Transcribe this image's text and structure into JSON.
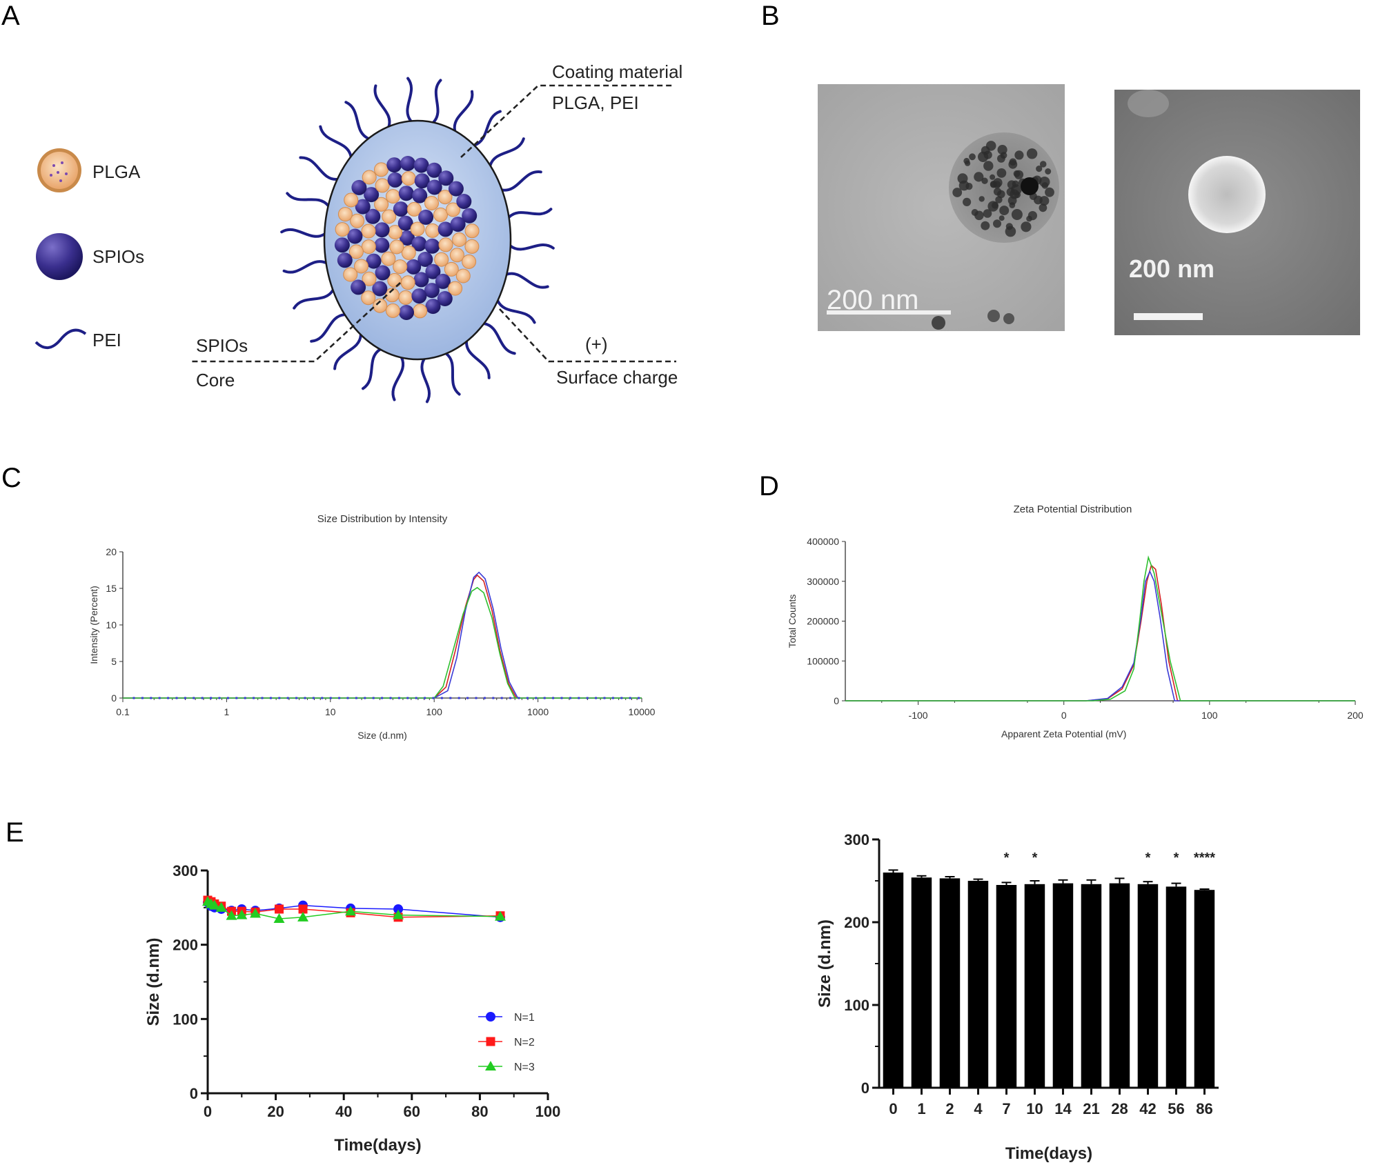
{
  "panels": {
    "a": "A",
    "b": "B",
    "c": "C",
    "d": "D",
    "e": "E"
  },
  "schematic": {
    "legend": [
      "PLGA",
      "SPIOs",
      "PEI"
    ],
    "coating_label_1": "Coating material",
    "coating_label_2": "PLGA, PEI",
    "core_label_1": "SPIOs",
    "core_label_2": "Core",
    "charge_label_1": "(+)",
    "charge_label_2": "Surface charge",
    "colors": {
      "shell": "#b6cbec",
      "spio": "#2e2a7a",
      "plga": "#efb98a",
      "pei": "#1d1f86"
    }
  },
  "micrographs": {
    "tem_scale": "200 nm",
    "sem_scale": "200 nm"
  },
  "chart_data": [
    {
      "id": "C",
      "type": "line",
      "title": "Size Distribution by Intensity",
      "xlabel": "Size (d.nm)",
      "ylabel": "Intensity (Percent)",
      "xscale": "log",
      "xlim": [
        0.1,
        10000
      ],
      "ylim": [
        0,
        20
      ],
      "xticks": [
        "0.1",
        "1",
        "10",
        "100",
        "1000",
        "10000"
      ],
      "xtick_values": [
        0.1,
        1,
        10,
        100,
        1000,
        10000
      ],
      "yticks": [
        0,
        5,
        10,
        15,
        20
      ],
      "colors": [
        "#d32020",
        "#3a3ad6",
        "#2fbf2f"
      ],
      "series": [
        {
          "x": [
            0.1,
            100,
            130,
            160,
            200,
            240,
            260,
            300,
            360,
            430,
            520,
            620,
            10000
          ],
          "y": [
            0,
            0,
            1.5,
            6.5,
            12.5,
            16.2,
            16.8,
            16.0,
            12.0,
            6.5,
            2.0,
            0,
            0
          ]
        },
        {
          "x": [
            0.1,
            100,
            135,
            165,
            200,
            240,
            270,
            310,
            370,
            440,
            530,
            640,
            10000
          ],
          "y": [
            0,
            0,
            1.0,
            5.5,
            12.0,
            16.5,
            17.2,
            16.3,
            12.2,
            6.8,
            2.2,
            0,
            0
          ]
        },
        {
          "x": [
            0.1,
            100,
            122,
            150,
            190,
            230,
            260,
            300,
            360,
            430,
            510,
            600,
            10000
          ],
          "y": [
            0,
            0,
            1.6,
            6.2,
            11.5,
            14.6,
            15.1,
            14.4,
            11.0,
            6.0,
            2.0,
            0,
            0
          ]
        }
      ]
    },
    {
      "id": "D",
      "type": "line",
      "title": "Zeta Potential Distribution",
      "xlabel": "Apparent Zeta Potential (mV)",
      "ylabel": "Total Counts",
      "xlim": [
        -150,
        200
      ],
      "ylim": [
        0,
        400000
      ],
      "xticks": [
        -100,
        0,
        100,
        200
      ],
      "yticks": [
        0,
        100000,
        200000,
        300000,
        400000
      ],
      "colors": [
        "#d32020",
        "#3a3ad6",
        "#2fbf2f"
      ],
      "series": [
        {
          "x": [
            -150,
            15,
            30,
            40,
            48,
            53,
            57,
            60,
            63,
            67,
            72,
            78,
            200
          ],
          "y": [
            0,
            0,
            5000,
            30000,
            90000,
            200000,
            300000,
            340000,
            330000,
            240000,
            100000,
            0,
            0
          ]
        },
        {
          "x": [
            -150,
            15,
            30,
            40,
            48,
            53,
            56,
            59,
            62,
            66,
            71,
            76,
            200
          ],
          "y": [
            0,
            0,
            6000,
            35000,
            95000,
            210000,
            300000,
            325000,
            300000,
            210000,
            80000,
            0,
            0
          ]
        },
        {
          "x": [
            -150,
            20,
            32,
            42,
            48,
            52,
            55,
            58,
            62,
            67,
            73,
            80,
            200
          ],
          "y": [
            0,
            0,
            4000,
            25000,
            80000,
            200000,
            300000,
            360000,
            320000,
            220000,
            100000,
            0,
            0
          ]
        }
      ]
    },
    {
      "id": "E-left",
      "type": "line",
      "xlabel": "Time(days)",
      "ylabel": "Size (d.nm)",
      "xlim": [
        0,
        100
      ],
      "ylim": [
        0,
        300
      ],
      "xticks": [
        0,
        20,
        40,
        60,
        80,
        100
      ],
      "yticks": [
        0,
        100,
        200,
        300
      ],
      "legend_position": "bottom-right",
      "series": [
        {
          "name": "N=1",
          "color": "#1a1aff",
          "marker": "circle",
          "x": [
            0,
            1,
            2,
            4,
            7,
            10,
            14,
            21,
            28,
            42,
            56,
            86
          ],
          "y": [
            257,
            252,
            250,
            248,
            246,
            248,
            246,
            249,
            253,
            249,
            248,
            237
          ]
        },
        {
          "name": "N=2",
          "color": "#ff1a1a",
          "marker": "square",
          "x": [
            0,
            1,
            2,
            4,
            7,
            10,
            14,
            21,
            28,
            42,
            56,
            86
          ],
          "y": [
            260,
            258,
            255,
            252,
            245,
            245,
            244,
            248,
            248,
            243,
            237,
            239
          ]
        },
        {
          "name": "N=3",
          "color": "#22cc22",
          "marker": "triangle",
          "x": [
            0,
            1,
            2,
            4,
            7,
            10,
            14,
            21,
            28,
            42,
            56,
            86
          ],
          "y": [
            258,
            255,
            253,
            250,
            239,
            240,
            242,
            235,
            237,
            245,
            240,
            238
          ]
        }
      ]
    },
    {
      "id": "E-right",
      "type": "bar",
      "xlabel": "Time(days)",
      "ylabel": "Size (d.nm)",
      "ylim": [
        0,
        300
      ],
      "yticks": [
        0,
        100,
        200,
        300
      ],
      "categories": [
        "0",
        "1",
        "2",
        "4",
        "7",
        "10",
        "14",
        "21",
        "28",
        "42",
        "56",
        "86"
      ],
      "values": [
        260,
        254,
        253,
        250,
        245,
        246,
        247,
        246,
        247,
        246,
        243,
        239
      ],
      "errors": [
        3,
        2,
        2,
        2,
        3,
        4,
        4,
        5,
        6,
        3,
        4,
        1
      ],
      "annotations": [
        "",
        "",
        "",
        "",
        "*",
        "*",
        "",
        "",
        "",
        "*",
        "*",
        "****"
      ],
      "color": "#000000"
    }
  ]
}
